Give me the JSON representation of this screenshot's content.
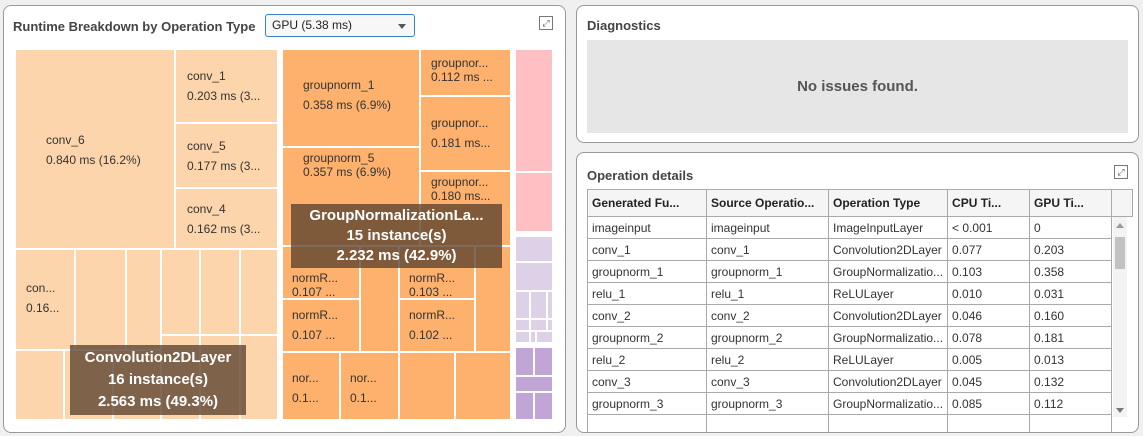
{
  "runtime_panel": {
    "title": "Runtime Breakdown by Operation Type",
    "dropdown_value": "GPU (5.38 ms)",
    "expand_icon": "expand-icon",
    "colors": {
      "Convolution2DLayer": "#fdd5ac",
      "GroupNormalizationLayer": "#fdb16c",
      "pink_group": "#ffc0c4",
      "lavender_group": "#ddd1e7",
      "purple_group": "#c1a5d7"
    },
    "groups": [
      {
        "name": "Convolution2DLayer",
        "instances": "16 instance(s)",
        "time": "2.563 ms (49.3%)"
      },
      {
        "name": "GroupNormalizationLa...",
        "instances": "15 instance(s)",
        "time": "2.232 ms (42.9%)"
      }
    ],
    "tiles": {
      "conv_6": {
        "name": "conv_6",
        "value": "0.840 ms (16.2%)"
      },
      "conv_1": {
        "name": "conv_1",
        "value": "0.203 ms (3..."
      },
      "conv_5": {
        "name": "conv_5",
        "value": "0.177 ms (3..."
      },
      "conv_4": {
        "name": "conv_4",
        "value": "0.162 ms (3..."
      },
      "conv_x": {
        "name": "con...",
        "value": "0.16..."
      },
      "groupnorm_1": {
        "name": "groupnorm_1",
        "value": "0.358 ms (6.9%)"
      },
      "groupnorm_5": {
        "name": "groupnorm_5",
        "value": "0.357 ms (6.9%)"
      },
      "gn_a": {
        "name": "groupnor...",
        "value": "0.181 ms..."
      },
      "gn_b": {
        "name": "groupnor...",
        "value": "0.180 ms..."
      },
      "gn_c": {
        "name": "groupnor...",
        "value": "0.112 ms ..."
      },
      "nr_a": {
        "name": "normR...",
        "value": "0.107 ..."
      },
      "nr_b": {
        "name": "normR...",
        "value": "0.103 ..."
      },
      "nr_c": {
        "name": "normR...",
        "value": "0.107 ..."
      },
      "nr_d": {
        "name": "normR...",
        "value": "0.102 ..."
      },
      "nr_e": {
        "name": "nor...",
        "value": "0.1..."
      },
      "nr_f": {
        "name": "nor...",
        "value": "0.1..."
      }
    }
  },
  "diagnostics": {
    "title": "Diagnostics",
    "message": "No issues found."
  },
  "operation_details": {
    "title": "Operation details",
    "columns": [
      "Generated Fu...",
      "Source Operatio...",
      "Operation Type",
      "CPU Ti...",
      "GPU Ti..."
    ],
    "rows": [
      [
        "imageinput",
        "imageinput",
        "ImageInputLayer",
        "< 0.001",
        "0"
      ],
      [
        "conv_1",
        "conv_1",
        "Convolution2DLayer",
        "0.077",
        "0.203"
      ],
      [
        "groupnorm_1",
        "groupnorm_1",
        "GroupNormalizatio...",
        "0.103",
        "0.358"
      ],
      [
        "relu_1",
        "relu_1",
        "ReLULayer",
        "0.010",
        "0.031"
      ],
      [
        "conv_2",
        "conv_2",
        "Convolution2DLayer",
        "0.046",
        "0.160"
      ],
      [
        "groupnorm_2",
        "groupnorm_2",
        "GroupNormalizatio...",
        "0.078",
        "0.181"
      ],
      [
        "relu_2",
        "relu_2",
        "ReLULayer",
        "0.005",
        "0.013"
      ],
      [
        "conv_3",
        "conv_3",
        "Convolution2DLayer",
        "0.045",
        "0.132"
      ],
      [
        "groupnorm_3",
        "groupnorm_3",
        "GroupNormalizatio...",
        "0.085",
        "0.112"
      ]
    ]
  }
}
